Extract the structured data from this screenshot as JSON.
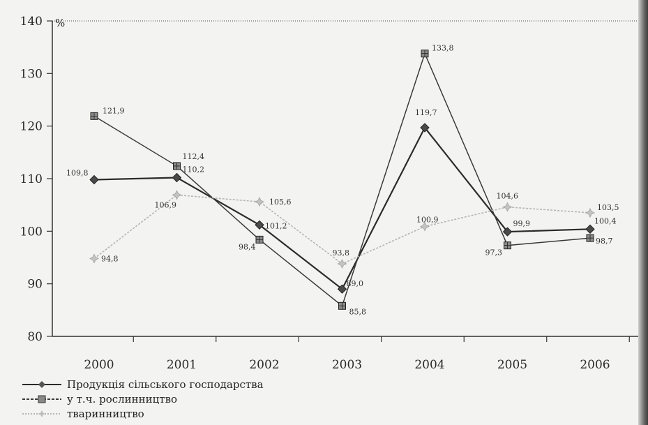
{
  "chart_data": {
    "type": "line",
    "unit_label": "%",
    "categories": [
      "2000",
      "2001",
      "2002",
      "2003",
      "2004",
      "2005",
      "2006"
    ],
    "ylim": [
      80,
      140
    ],
    "yticks": [
      "80",
      "90",
      "100",
      "110",
      "120",
      "130",
      "140"
    ],
    "series": [
      {
        "name": "Продукція сільського господарства",
        "values": [
          109.8,
          110.2,
          101.2,
          89.0,
          119.7,
          99.9,
          100.4
        ],
        "labels": [
          "109,8",
          "110,2",
          "101,2",
          "89,0",
          "119,7",
          "99,9",
          "100,4"
        ],
        "color": "#2b2b2b",
        "marker": "diamond"
      },
      {
        "name": "у т.ч. рослинництво",
        "values": [
          121.9,
          112.4,
          98.4,
          85.8,
          133.8,
          97.3,
          98.7
        ],
        "labels": [
          "121,9",
          "112,4",
          "98,4",
          "85,8",
          "133,8",
          "97,3",
          "98,7"
        ],
        "color": "#3a3a3a",
        "marker": "square"
      },
      {
        "name": "тваринництво",
        "values": [
          94.8,
          106.9,
          105.6,
          93.8,
          100.9,
          104.6,
          103.5
        ],
        "labels": [
          "94,8",
          "106,9",
          "105,6",
          "93,8",
          "100,9",
          "104,6",
          "103,5"
        ],
        "color": "#b5b5b5",
        "marker": "star"
      }
    ]
  }
}
